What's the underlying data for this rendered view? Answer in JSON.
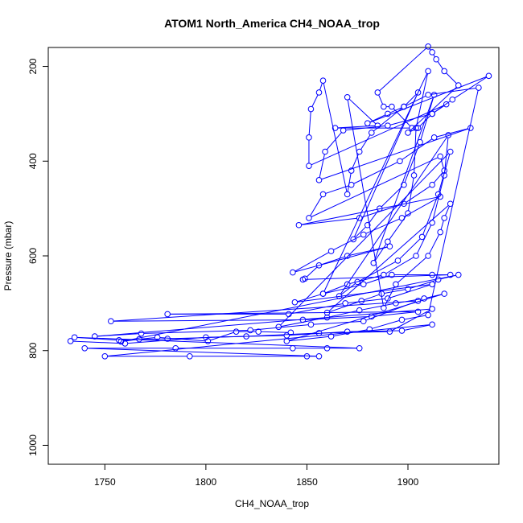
{
  "chart_data": {
    "type": "line",
    "title": "ATOM1 North_America CH4_NOAA_trop",
    "xlabel": "CH4_NOAA_trop",
    "ylabel": "Pressure (mbar)",
    "xlim": [
      1722,
      1945
    ],
    "ylim": [
      1040,
      160
    ],
    "y_inverted": true,
    "x_ticks": [
      1750,
      1800,
      1850,
      1900
    ],
    "y_ticks": [
      200,
      400,
      600,
      800,
      1000
    ],
    "markers": "open-circle",
    "series_color": "#0000ff",
    "series": [
      {
        "values": [
          [
            1733,
            780
          ],
          [
            1760,
            785
          ],
          [
            1800,
            772
          ],
          [
            1840,
            768
          ],
          [
            1870,
            760
          ],
          [
            1897,
            758
          ],
          [
            1912,
            745
          ],
          [
            1750,
            812
          ],
          [
            1792,
            812
          ],
          [
            1850,
            812
          ],
          [
            1856,
            812
          ],
          [
            1740,
            795
          ],
          [
            1785,
            795
          ],
          [
            1843,
            795
          ],
          [
            1860,
            795
          ],
          [
            1876,
            795
          ],
          [
            1735,
            772
          ],
          [
            1757,
            778
          ],
          [
            1781,
            775
          ],
          [
            1820,
            770
          ],
          [
            1856,
            763
          ],
          [
            1891,
            760
          ],
          [
            1912,
            712
          ],
          [
            1745,
            770
          ],
          [
            1768,
            764
          ],
          [
            1822,
            757
          ],
          [
            1852,
            745
          ],
          [
            1878,
            738
          ],
          [
            1905,
            695
          ],
          [
            1753,
            738
          ],
          [
            1848,
            735
          ],
          [
            1882,
            728
          ],
          [
            1905,
            718
          ],
          [
            1781,
            723
          ],
          [
            1841,
            723
          ],
          [
            1869,
            700
          ],
          [
            1890,
            690
          ],
          [
            1912,
            660
          ],
          [
            1844,
            698
          ],
          [
            1858,
            680
          ],
          [
            1878,
            660
          ],
          [
            1892,
            640
          ],
          [
            1912,
            640
          ],
          [
            1921,
            640
          ],
          [
            1848,
            650
          ],
          [
            1849,
            648
          ],
          [
            1856,
            620
          ],
          [
            1870,
            600
          ],
          [
            1891,
            580
          ],
          [
            1843,
            635
          ],
          [
            1862,
            590
          ],
          [
            1878,
            555
          ],
          [
            1897,
            520
          ],
          [
            1916,
            475
          ],
          [
            1846,
            535
          ],
          [
            1876,
            520
          ],
          [
            1898,
            490
          ],
          [
            1912,
            450
          ],
          [
            1918,
            420
          ],
          [
            1916,
            390
          ],
          [
            1851,
            520
          ],
          [
            1858,
            470
          ],
          [
            1872,
            450
          ],
          [
            1896,
            400
          ],
          [
            1913,
            350
          ],
          [
            1931,
            330
          ],
          [
            1856,
            440
          ],
          [
            1859,
            380
          ],
          [
            1868,
            335
          ],
          [
            1890,
            325
          ],
          [
            1912,
            300
          ],
          [
            1919,
            280
          ],
          [
            1851,
            410
          ],
          [
            1851,
            350
          ],
          [
            1852,
            290
          ],
          [
            1856,
            255
          ],
          [
            1858,
            230
          ],
          [
            1870,
            470
          ],
          [
            1872,
            420
          ],
          [
            1876,
            380
          ],
          [
            1882,
            340
          ],
          [
            1898,
            285
          ],
          [
            1905,
            255
          ],
          [
            1873,
            565
          ],
          [
            1880,
            535
          ],
          [
            1886,
            500
          ],
          [
            1898,
            450
          ],
          [
            1906,
            360
          ],
          [
            1913,
            260
          ],
          [
            1883,
            615
          ],
          [
            1890,
            570
          ],
          [
            1900,
            510
          ],
          [
            1903,
            430
          ],
          [
            1904,
            330
          ],
          [
            1910,
            210
          ],
          [
            1858,
            680
          ],
          [
            1870,
            660
          ],
          [
            1888,
            640
          ],
          [
            1904,
            600
          ],
          [
            1912,
            530
          ],
          [
            1918,
            430
          ],
          [
            1920,
            345
          ],
          [
            1866,
            685
          ],
          [
            1875,
            655
          ],
          [
            1895,
            610
          ],
          [
            1907,
            560
          ],
          [
            1915,
            470
          ],
          [
            1921,
            380
          ],
          [
            1836,
            750
          ],
          [
            1860,
            730
          ],
          [
            1876,
            715
          ],
          [
            1894,
            700
          ],
          [
            1908,
            690
          ],
          [
            1918,
            680
          ],
          [
            1840,
            780
          ],
          [
            1862,
            770
          ],
          [
            1881,
            755
          ],
          [
            1897,
            735
          ],
          [
            1910,
            725
          ],
          [
            1935,
            245
          ],
          [
            1910,
            260
          ],
          [
            1898,
            285
          ],
          [
            1890,
            300
          ],
          [
            1880,
            320
          ],
          [
            1940,
            220
          ],
          [
            1922,
            270
          ],
          [
            1912,
            300
          ],
          [
            1905,
            330
          ],
          [
            1900,
            340
          ],
          [
            1925,
            240
          ],
          [
            1918,
            210
          ],
          [
            1914,
            185
          ],
          [
            1912,
            170
          ],
          [
            1910,
            158
          ],
          [
            1885,
            255
          ],
          [
            1888,
            285
          ],
          [
            1892,
            285
          ],
          [
            1902,
            330
          ],
          [
            1864,
            330
          ],
          [
            1885,
            325
          ],
          [
            1870,
            265
          ],
          [
            1888,
            710
          ],
          [
            1894,
            660
          ],
          [
            1910,
            600
          ],
          [
            1916,
            550
          ],
          [
            1918,
            520
          ],
          [
            1921,
            490
          ],
          [
            1860,
            720
          ],
          [
            1877,
            695
          ],
          [
            1887,
            680
          ],
          [
            1900,
            670
          ],
          [
            1915,
            650
          ],
          [
            1925,
            640
          ],
          [
            1758,
            781
          ],
          [
            1767,
            776
          ],
          [
            1776,
            772
          ],
          [
            1801,
            780
          ],
          [
            1815,
            760
          ],
          [
            1826,
            760
          ],
          [
            1842,
            762
          ]
        ]
      }
    ]
  }
}
